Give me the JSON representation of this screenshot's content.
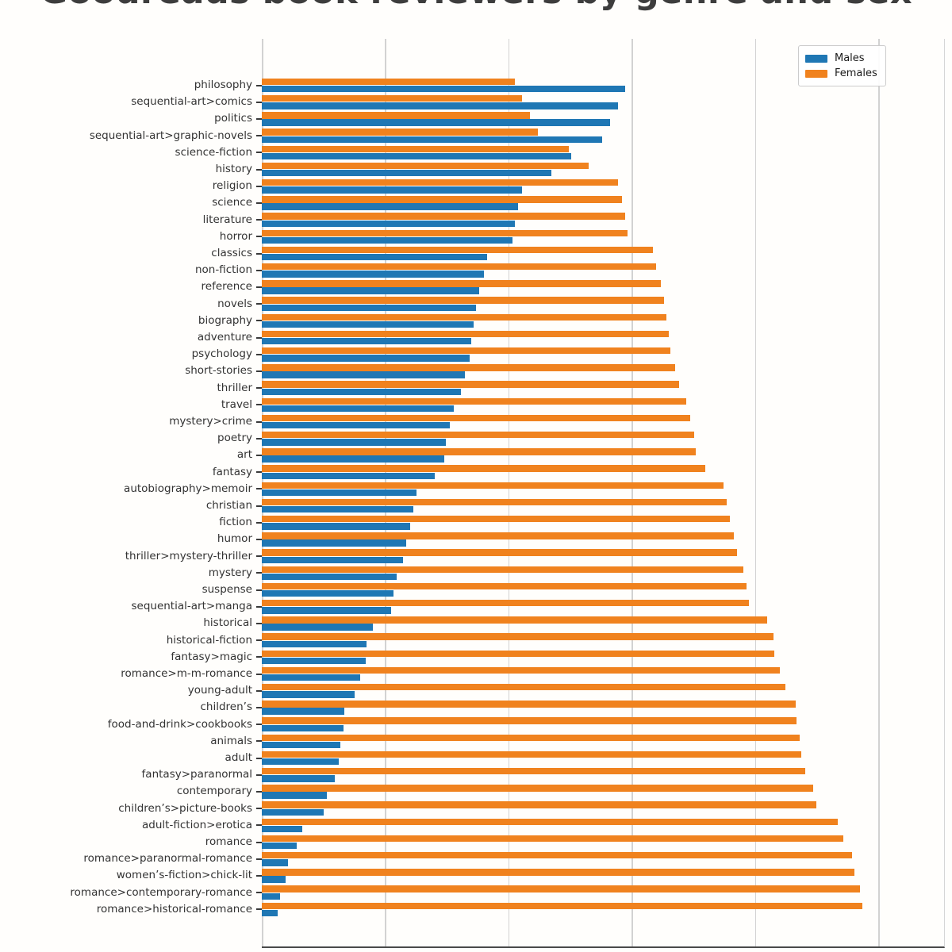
{
  "title": "Goodreads book reviewers by genre and sex",
  "legend": {
    "items": [
      {
        "label": "Males",
        "color": "#1f77b4"
      },
      {
        "label": "Females",
        "color": "#f0821e"
      }
    ]
  },
  "chart_data": {
    "type": "bar",
    "orientation": "horizontal",
    "title": "Goodreads book reviewers by genre and sex",
    "xlabel": "",
    "ylabel": "",
    "xlim": [
      0,
      1.1
    ],
    "grid": true,
    "gridlines_x": [
      0,
      0.2,
      0.4,
      0.6,
      0.8,
      1.0
    ],
    "legend_position": "upper right",
    "categories": [
      "philosophy",
      "sequential-art>comics",
      "politics",
      "sequential-art>graphic-novels",
      "science-fiction",
      "history",
      "religion",
      "science",
      "literature",
      "horror",
      "classics",
      "non-fiction",
      "reference",
      "novels",
      "biography",
      "adventure",
      "psychology",
      "short-stories",
      "thriller",
      "travel",
      "mystery>crime",
      "poetry",
      "art",
      "fantasy",
      "autobiography>memoir",
      "christian",
      "fiction",
      "humor",
      "thriller>mystery-thriller",
      "mystery",
      "suspense",
      "sequential-art>manga",
      "historical",
      "historical-fiction",
      "fantasy>magic",
      "romance>m-m-romance",
      "young-adult",
      "children’s",
      "food-and-drink>cookbooks",
      "animals",
      "adult",
      "fantasy>paranormal",
      "contemporary",
      "children’s>picture-books",
      "adult-fiction>erotica",
      "romance",
      "romance>paranormal-romance",
      "women’s-fiction>chick-lit",
      "romance>contemporary-romance",
      "romance>historical-romance"
    ],
    "series": [
      {
        "name": "Males",
        "color": "#1f77b4",
        "values": [
          0.59,
          0.578,
          0.565,
          0.552,
          0.502,
          0.47,
          0.422,
          0.416,
          0.41,
          0.407,
          0.366,
          0.36,
          0.352,
          0.348,
          0.344,
          0.34,
          0.337,
          0.329,
          0.323,
          0.311,
          0.305,
          0.299,
          0.296,
          0.28,
          0.251,
          0.246,
          0.241,
          0.234,
          0.229,
          0.219,
          0.213,
          0.21,
          0.18,
          0.17,
          0.168,
          0.16,
          0.151,
          0.134,
          0.132,
          0.128,
          0.125,
          0.119,
          0.105,
          0.1,
          0.065,
          0.056,
          0.042,
          0.038,
          0.029,
          0.026
        ]
      },
      {
        "name": "Females",
        "color": "#f0821e",
        "values": [
          0.41,
          0.422,
          0.435,
          0.448,
          0.498,
          0.53,
          0.578,
          0.584,
          0.59,
          0.593,
          0.634,
          0.64,
          0.648,
          0.652,
          0.656,
          0.66,
          0.663,
          0.671,
          0.677,
          0.689,
          0.695,
          0.701,
          0.704,
          0.72,
          0.749,
          0.754,
          0.759,
          0.766,
          0.771,
          0.781,
          0.787,
          0.79,
          0.82,
          0.83,
          0.832,
          0.84,
          0.849,
          0.866,
          0.868,
          0.872,
          0.875,
          0.881,
          0.895,
          0.9,
          0.935,
          0.944,
          0.958,
          0.962,
          0.971,
          0.974
        ]
      }
    ]
  }
}
